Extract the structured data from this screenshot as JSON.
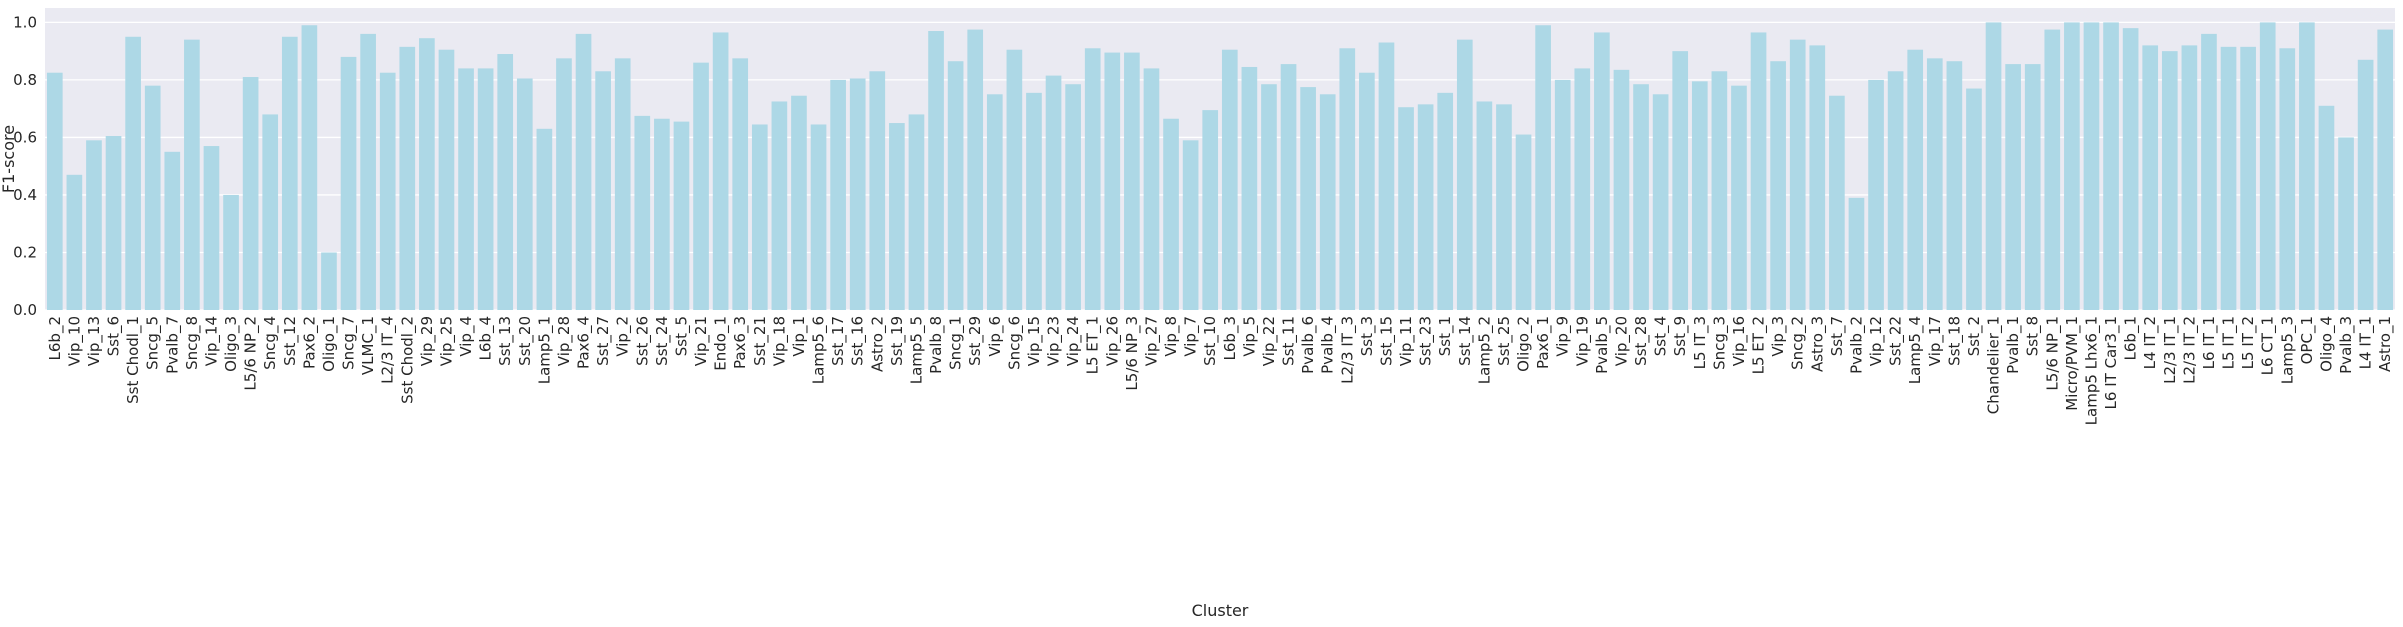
{
  "chart_data": {
    "type": "bar",
    "xlabel": "Cluster",
    "ylabel": "F1-score",
    "ylim": [
      0,
      1.05
    ],
    "yticks": [
      "0.0",
      "0.2",
      "0.4",
      "0.6",
      "0.8",
      "1.0"
    ],
    "grid": true,
    "bar_color": "#ADD8E6",
    "background_color": "#EAEAF2",
    "categories": [
      "L6b_2",
      "Vip_10",
      "Vip_13",
      "Sst_6",
      "Sst Chodl_1",
      "Sncg_5",
      "Pvalb_7",
      "Sncg_8",
      "Vip_14",
      "Oligo_3",
      "L5/6 NP_2",
      "Sncg_4",
      "Sst_12",
      "Pax6_2",
      "Oligo_1",
      "Sncg_7",
      "VLMC_1",
      "L2/3 IT_4",
      "Sst Chodl_2",
      "Vip_29",
      "Vip_25",
      "Vip_4",
      "L6b_4",
      "Sst_13",
      "Sst_20",
      "Lamp5_1",
      "Vip_28",
      "Pax6_4",
      "Sst_27",
      "Vip_2",
      "Sst_26",
      "Sst_24",
      "Sst_5",
      "Vip_21",
      "Endo_1",
      "Pax6_3",
      "Sst_21",
      "Vip_18",
      "Vip_1",
      "Lamp5_6",
      "Sst_17",
      "Sst_16",
      "Astro_2",
      "Sst_19",
      "Lamp5_5",
      "Pvalb_8",
      "Sncg_1",
      "Sst_29",
      "Vip_6",
      "Sncg_6",
      "Vip_15",
      "Vip_23",
      "Vip_24",
      "L5 ET_1",
      "Vip_26",
      "L5/6 NP_3",
      "Vip_27",
      "Vip_8",
      "Vip_7",
      "Sst_10",
      "L6b_3",
      "Vip_5",
      "Vip_22",
      "Sst_11",
      "Pvalb_6",
      "Pvalb_4",
      "L2/3 IT_3",
      "Sst_3",
      "Sst_15",
      "Vip_11",
      "Sst_23",
      "Sst_1",
      "Sst_14",
      "Lamp5_2",
      "Sst_25",
      "Oligo_2",
      "Pax6_1",
      "Vip_9",
      "Vip_19",
      "Pvalb_5",
      "Vip_20",
      "Sst_28",
      "Sst_4",
      "Sst_9",
      "L5 IT_3",
      "Sncg_3",
      "Vip_16",
      "L5 ET_2",
      "Vip_3",
      "Sncg_2",
      "Astro_3",
      "Sst_7",
      "Pvalb_2",
      "Vip_12",
      "Sst_22",
      "Lamp5_4",
      "Vip_17",
      "Sst_18",
      "Sst_2",
      "Chandelier_1",
      "Pvalb_1",
      "Sst_8",
      "L5/6 NP_1",
      "Micro/PVM_1",
      "Lamp5 Lhx6_1",
      "L6 IT Car3_1",
      "L6b_1",
      "L4 IT_2",
      "L2/3 IT_1",
      "L2/3 IT_2",
      "L6 IT_1",
      "L5 IT_1",
      "L5 IT_2",
      "L6 CT_1",
      "Lamp5_3",
      "OPC_1",
      "Oligo_4",
      "Pvalb_3",
      "L4 IT_1",
      "Astro_1"
    ],
    "values": [
      0.825,
      0.47,
      0.59,
      0.605,
      0.95,
      0.78,
      0.55,
      0.94,
      0.57,
      0.4,
      0.81,
      0.68,
      0.95,
      0.99,
      0.2,
      0.88,
      0.96,
      0.825,
      0.915,
      0.945,
      0.905,
      0.84,
      0.84,
      0.89,
      0.805,
      0.63,
      0.875,
      0.96,
      0.83,
      0.875,
      0.675,
      0.665,
      0.655,
      0.86,
      0.965,
      0.875,
      0.645,
      0.725,
      0.745,
      0.645,
      0.8,
      0.805,
      0.83,
      0.65,
      0.68,
      0.97,
      0.865,
      0.975,
      0.75,
      0.905,
      0.755,
      0.815,
      0.785,
      0.91,
      0.895,
      0.895,
      0.84,
      0.665,
      0.59,
      0.695,
      0.905,
      0.845,
      0.785,
      0.855,
      0.775,
      0.75,
      0.91,
      0.825,
      0.93,
      0.705,
      0.715,
      0.755,
      0.94,
      0.725,
      0.715,
      0.61,
      0.99,
      0.8,
      0.84,
      0.965,
      0.835,
      0.785,
      0.75,
      0.9,
      0.795,
      0.83,
      0.78,
      0.965,
      0.865,
      0.94,
      0.92,
      0.745,
      0.39,
      0.8,
      0.83,
      0.905,
      0.875,
      0.865,
      0.77,
      1.0,
      0.855,
      0.855,
      0.975,
      1.0,
      1.0,
      1.0,
      0.98,
      0.92,
      0.9,
      0.92,
      0.96,
      0.915,
      0.915,
      1.0,
      0.91,
      1.0,
      0.71,
      0.6,
      0.87,
      0.975
    ]
  }
}
